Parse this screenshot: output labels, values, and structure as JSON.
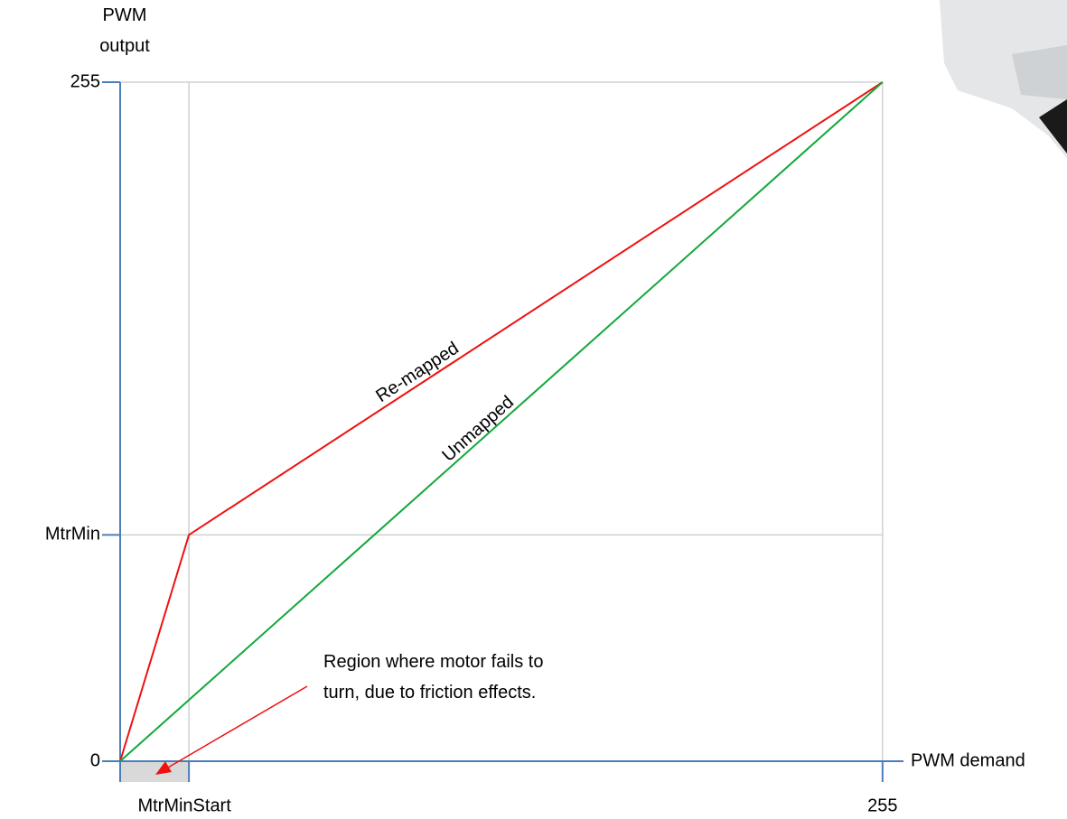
{
  "chart_data": {
    "type": "line",
    "x_label": "PWM demand",
    "y_label": "PWM output",
    "series": [
      {
        "name": "Re-mapped",
        "color": "#ee1111",
        "x": [
          0,
          23,
          255
        ],
        "values": [
          0,
          85,
          255
        ]
      },
      {
        "name": "Unmapped",
        "color": "#12a83c",
        "x": [
          0,
          255
        ],
        "values": [
          0,
          255
        ]
      }
    ],
    "xlim": [
      0,
      262
    ],
    "ylim": [
      0,
      255
    ],
    "xticks": [
      {
        "value": 23,
        "label": "MtrMinStart"
      },
      255
    ],
    "yticks": [
      0,
      {
        "value": 85,
        "label": "MtrMin"
      },
      255
    ],
    "annotation": "Region where motor fails to turn, due to friction effects.",
    "axis_color": "#4a7ebb",
    "grid": true
  }
}
